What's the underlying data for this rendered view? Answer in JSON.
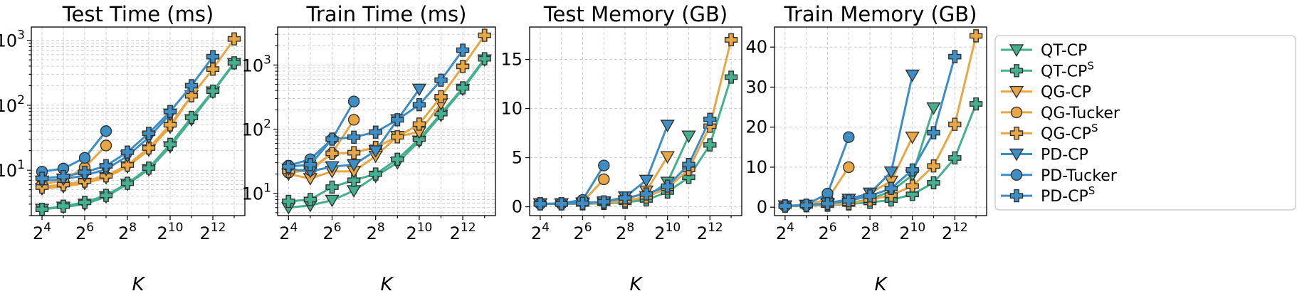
{
  "chart_data": [
    {
      "type": "line",
      "title": "Test Time (ms)",
      "xlabel": "K",
      "ylabel": "",
      "x_tick_labels": [
        4,
        6,
        8,
        10,
        12
      ],
      "yscale": "log",
      "ylim": [
        2.0,
        1600
      ],
      "y_tick_labels": [
        "10^1",
        "10^2",
        "10^3"
      ],
      "grid": true,
      "series": [
        {
          "name": "QT-CP",
          "x": [
            16,
            32,
            64,
            128,
            256,
            512,
            1024,
            2048,
            4096,
            8192
          ],
          "y": [
            2.5,
            2.7,
            3.0,
            3.9,
            6.1,
            10.2,
            23,
            60,
            160,
            440
          ]
        },
        {
          "name": "QT-CP^S",
          "x": [
            16,
            32,
            64,
            128,
            256,
            512,
            1024,
            2048,
            4096,
            8192
          ],
          "y": [
            2.5,
            2.8,
            3.2,
            4.1,
            6.3,
            10.8,
            25,
            65,
            165,
            450
          ]
        },
        {
          "name": "QG-CP",
          "x": [
            16,
            32,
            64,
            128,
            256,
            512,
            1024,
            2048
          ],
          "y": [
            5.2,
            5.6,
            6.3,
            7.7,
            11.3,
            20.5,
            46,
            140
          ]
        },
        {
          "name": "QG-Tucker",
          "x": [
            16,
            32,
            64,
            128
          ],
          "y": [
            6.0,
            7.0,
            11,
            24
          ]
        },
        {
          "name": "QG-CP^S",
          "x": [
            16,
            32,
            64,
            128,
            256,
            512,
            1024,
            2048,
            4096,
            8192
          ],
          "y": [
            5.5,
            6.0,
            6.8,
            8.2,
            12,
            22,
            50,
            140,
            360,
            1050
          ]
        },
        {
          "name": "PD-CP",
          "x": [
            16,
            32,
            64,
            128,
            256,
            512,
            1024
          ],
          "y": [
            6.8,
            7.3,
            8.3,
            10.3,
            16.5,
            32,
            73
          ]
        },
        {
          "name": "PD-Tucker",
          "x": [
            16,
            32,
            64,
            128
          ],
          "y": [
            9.5,
            10.6,
            15.5,
            40
          ]
        },
        {
          "name": "PD-CP^S",
          "x": [
            16,
            32,
            64,
            128,
            256,
            512,
            1024,
            2048,
            4096
          ],
          "y": [
            7.5,
            8.0,
            9.3,
            11.7,
            19,
            37,
            80,
            200,
            560
          ]
        }
      ]
    },
    {
      "type": "line",
      "title": "Train Time (ms)",
      "xlabel": "K",
      "ylabel": "",
      "x_tick_labels": [
        4,
        6,
        8,
        10,
        12
      ],
      "yscale": "log",
      "ylim": [
        4.5,
        3900
      ],
      "y_tick_labels": [
        "10^1",
        "10^2",
        "10^3"
      ],
      "grid": true,
      "series": [
        {
          "name": "QT-CP",
          "x": [
            16,
            32,
            64,
            128,
            256,
            512,
            1024,
            2048,
            4096,
            8192
          ],
          "y": [
            6.0,
            6.5,
            7.8,
            11,
            18.5,
            30,
            65,
            165,
            420,
            1200
          ]
        },
        {
          "name": "QT-CP^S",
          "x": [
            16,
            32,
            64,
            128,
            256,
            512,
            1024,
            2048,
            4096,
            8192
          ],
          "y": [
            7.5,
            8.0,
            12.5,
            16,
            20,
            34,
            70,
            175,
            440,
            1250
          ]
        },
        {
          "name": "QG-CP",
          "x": [
            16,
            32,
            64,
            128,
            256,
            512,
            1024,
            2048
          ],
          "y": [
            20,
            17,
            22,
            22,
            38,
            77,
            90,
            250
          ]
        },
        {
          "name": "QG-Tucker",
          "x": [
            16,
            32,
            64,
            128
          ],
          "y": [
            21,
            23,
            42,
            140
          ]
        },
        {
          "name": "QG-CP^S",
          "x": [
            16,
            32,
            64,
            128,
            256,
            512,
            1024,
            2048,
            4096,
            8192
          ],
          "y": [
            22,
            24,
            42,
            43,
            52,
            76,
            120,
            320,
            950,
            2900
          ]
        },
        {
          "name": "PD-CP",
          "x": [
            16,
            32,
            64,
            128,
            256,
            512,
            1024
          ],
          "y": [
            24,
            22,
            26,
            28,
            46,
            140,
            420
          ]
        },
        {
          "name": "PD-Tucker",
          "x": [
            16,
            32,
            64,
            128
          ],
          "y": [
            27,
            34,
            70,
            270
          ]
        },
        {
          "name": "PD-CP^S",
          "x": [
            16,
            32,
            64,
            128,
            256,
            512,
            1024,
            2048,
            4096
          ],
          "y": [
            26,
            28,
            70,
            75,
            90,
            140,
            240,
            580,
            1700
          ]
        }
      ]
    },
    {
      "type": "line",
      "title": "Test Memory (GB)",
      "xlabel": "K",
      "ylabel": "",
      "x_tick_labels": [
        4,
        6,
        8,
        10,
        12
      ],
      "yscale": "linear",
      "ylim": [
        -0.9,
        18.3
      ],
      "y_ticks": [
        0,
        5,
        10,
        15
      ],
      "grid": true,
      "series": [
        {
          "name": "QT-CP",
          "x": [
            16,
            32,
            64,
            128,
            256,
            512,
            1024,
            2048
          ],
          "y": [
            0.3,
            0.3,
            0.3,
            0.35,
            0.5,
            1.0,
            2.5,
            7.2
          ]
        },
        {
          "name": "QT-CP^S",
          "x": [
            16,
            32,
            64,
            128,
            256,
            512,
            1024,
            2048,
            4096,
            8192
          ],
          "y": [
            0.3,
            0.3,
            0.3,
            0.35,
            0.45,
            0.7,
            1.5,
            3.0,
            6.3,
            13.2
          ]
        },
        {
          "name": "QG-CP",
          "x": [
            16,
            32,
            64,
            128,
            256,
            512,
            1024
          ],
          "y": [
            0.3,
            0.3,
            0.3,
            0.4,
            0.6,
            1.6,
            5.1
          ]
        },
        {
          "name": "QG-Tucker",
          "x": [
            16,
            32,
            64,
            128
          ],
          "y": [
            0.3,
            0.3,
            0.5,
            2.8
          ]
        },
        {
          "name": "QG-CP^S",
          "x": [
            16,
            32,
            64,
            128,
            256,
            512,
            1024,
            2048,
            4096,
            8192
          ],
          "y": [
            0.3,
            0.3,
            0.3,
            0.4,
            0.6,
            1.0,
            1.9,
            3.8,
            8.2,
            17.0
          ]
        },
        {
          "name": "PD-CP",
          "x": [
            16,
            32,
            64,
            128,
            256,
            512,
            1024
          ],
          "y": [
            0.3,
            0.3,
            0.4,
            0.5,
            1.0,
            2.7,
            8.3
          ]
        },
        {
          "name": "PD-Tucker",
          "x": [
            16,
            32,
            64,
            128
          ],
          "y": [
            0.3,
            0.35,
            0.7,
            4.2
          ]
        },
        {
          "name": "PD-CP^S",
          "x": [
            16,
            32,
            64,
            128,
            256,
            512,
            1024,
            2048,
            4096
          ],
          "y": [
            0.3,
            0.3,
            0.35,
            0.5,
            0.9,
            1.3,
            2.1,
            4.3,
            8.9
          ]
        }
      ]
    },
    {
      "type": "line",
      "title": "Train Memory (GB)",
      "xlabel": "K",
      "ylabel": "",
      "x_tick_labels": [
        4,
        6,
        8,
        10,
        12
      ],
      "yscale": "linear",
      "ylim": [
        -2.1,
        45.0
      ],
      "y_ticks": [
        0,
        10,
        20,
        30,
        40
      ],
      "grid": true,
      "series": [
        {
          "name": "QT-CP",
          "x": [
            16,
            32,
            64,
            128,
            256,
            512,
            1024,
            2048
          ],
          "y": [
            0.3,
            0.4,
            0.6,
            1.0,
            2.0,
            4.0,
            8.0,
            24.8
          ]
        },
        {
          "name": "QT-CP^S",
          "x": [
            16,
            32,
            64,
            128,
            256,
            512,
            1024,
            2048,
            4096,
            8192
          ],
          "y": [
            0.3,
            0.35,
            0.5,
            0.8,
            1.2,
            1.8,
            3.2,
            6.1,
            12.3,
            25.8
          ]
        },
        {
          "name": "QG-CP",
          "x": [
            16,
            32,
            64,
            128,
            256,
            512,
            1024
          ],
          "y": [
            0.3,
            0.4,
            0.8,
            1.5,
            3.5,
            6.5,
            17.5
          ]
        },
        {
          "name": "QG-Tucker",
          "x": [
            16,
            32,
            64,
            128
          ],
          "y": [
            0.3,
            0.5,
            2.0,
            10.0
          ]
        },
        {
          "name": "QG-CP^S",
          "x": [
            16,
            32,
            64,
            128,
            256,
            512,
            1024,
            2048,
            4096,
            8192
          ],
          "y": [
            0.3,
            0.4,
            0.6,
            1.0,
            1.8,
            3.0,
            5.3,
            10.3,
            20.7,
            42.8
          ]
        },
        {
          "name": "PD-CP",
          "x": [
            16,
            32,
            64,
            128,
            256,
            512,
            1024
          ],
          "y": [
            0.3,
            0.5,
            1.0,
            2.0,
            3.5,
            8.8,
            33.0
          ]
        },
        {
          "name": "PD-Tucker",
          "x": [
            16,
            32,
            64,
            128
          ],
          "y": [
            0.3,
            0.6,
            3.4,
            17.5
          ]
        },
        {
          "name": "PD-CP^S",
          "x": [
            16,
            32,
            64,
            128,
            256,
            512,
            1024,
            2048,
            4096
          ],
          "y": [
            0.3,
            0.5,
            0.9,
            1.6,
            2.8,
            4.7,
            9.3,
            18.6,
            37.6
          ]
        }
      ]
    }
  ],
  "legend": {
    "placement": "right",
    "entries": [
      {
        "series": "QT-CP",
        "label": "QT-CP",
        "sup": "",
        "color": "#44b08f",
        "marker": "triangle-down"
      },
      {
        "series": "QT-CP^S",
        "label": "QT-CP",
        "sup": "S",
        "color": "#44b08f",
        "marker": "plus"
      },
      {
        "series": "QG-CP",
        "label": "QG-CP",
        "sup": "",
        "color": "#e8a743",
        "marker": "triangle-down"
      },
      {
        "series": "QG-Tucker",
        "label": "QG-Tucker",
        "sup": "",
        "color": "#e8a743",
        "marker": "circle"
      },
      {
        "series": "QG-CP^S",
        "label": "QG-CP",
        "sup": "S",
        "color": "#e8a743",
        "marker": "plus"
      },
      {
        "series": "PD-CP",
        "label": "PD-CP",
        "sup": "",
        "color": "#3c8ec4",
        "marker": "triangle-down"
      },
      {
        "series": "PD-Tucker",
        "label": "PD-Tucker",
        "sup": "",
        "color": "#3c8ec4",
        "marker": "circle"
      },
      {
        "series": "PD-CP^S",
        "label": "PD-CP",
        "sup": "S",
        "color": "#3c8ec4",
        "marker": "plus"
      }
    ]
  }
}
